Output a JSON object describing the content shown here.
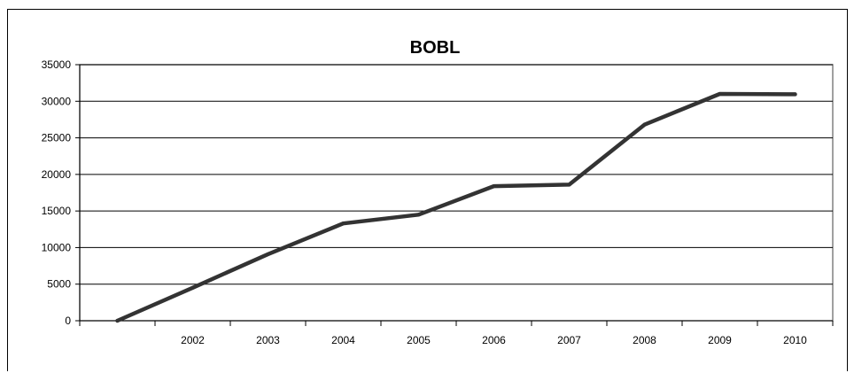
{
  "chart_data": {
    "type": "line",
    "title": "BOBL",
    "xlabel": "",
    "ylabel": "",
    "categories": [
      "",
      "2002",
      "2003",
      "2004",
      "2005",
      "2006",
      "2007",
      "2008",
      "2009",
      "2010"
    ],
    "series": [
      {
        "values": [
          0,
          4500,
          9100,
          13300,
          14500,
          18400,
          18600,
          26800,
          31000,
          30950
        ],
        "color": "#333333"
      }
    ],
    "ylim": [
      0,
      35000
    ],
    "yticks": [
      0,
      5000,
      10000,
      15000,
      20000,
      25000,
      30000,
      35000
    ],
    "grid": "horizontal",
    "legend": "none"
  }
}
